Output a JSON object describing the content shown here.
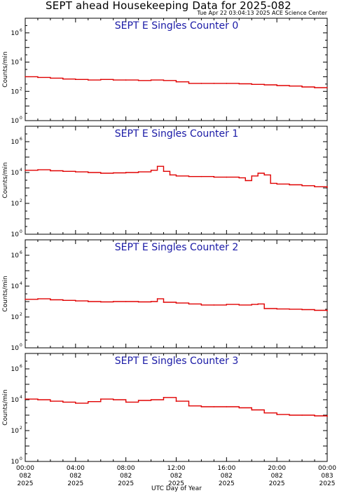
{
  "title": "SEPT ahead Housekeeping Data for 2025-082",
  "timestamp": "Tue Apr 22 03:04:13 2025 ACE Science Center",
  "xlabel": "UTC Day of Year",
  "colors": {
    "trace": "#e00000",
    "panel_title": "#1a1aa6",
    "axis": "#000000"
  },
  "x_ticks": [
    {
      "hour": 0,
      "time": "00:00",
      "doy": "082",
      "year": "2025"
    },
    {
      "hour": 4,
      "time": "04:00",
      "doy": "082",
      "year": "2025"
    },
    {
      "hour": 8,
      "time": "08:00",
      "doy": "082",
      "year": "2025"
    },
    {
      "hour": 12,
      "time": "12:00",
      "doy": "082",
      "year": "2025"
    },
    {
      "hour": 16,
      "time": "16:00",
      "doy": "082",
      "year": "2025"
    },
    {
      "hour": 20,
      "time": "20:00",
      "doy": "082",
      "year": "2025"
    },
    {
      "hour": 24,
      "time": "00:00",
      "doy": "083",
      "year": "2025"
    }
  ],
  "chart_data": [
    {
      "type": "line",
      "title": "SEPT E Singles Counter 0",
      "ylabel": "Counts/min",
      "yscale": "log",
      "ylim": [
        1,
        10000000.0
      ],
      "yticks": [
        {
          "exp": 0,
          "label": "10"
        },
        {
          "exp": 2,
          "label": "10"
        },
        {
          "exp": 4,
          "label": "10"
        },
        {
          "exp": 6,
          "label": "10"
        }
      ],
      "xlim": [
        0,
        24
      ],
      "x_hours": [
        0,
        1,
        2,
        3,
        4,
        5,
        6,
        7,
        8,
        9,
        10,
        11,
        12,
        13,
        14,
        15,
        16,
        17,
        18,
        19,
        20,
        21,
        22,
        23,
        24
      ],
      "values": [
        1000,
        900,
        800,
        700,
        650,
        600,
        650,
        600,
        600,
        550,
        600,
        550,
        450,
        350,
        350,
        350,
        350,
        330,
        300,
        280,
        250,
        230,
        200,
        180,
        180
      ]
    },
    {
      "type": "line",
      "title": "SEPT E Singles Counter 1",
      "ylabel": "Counts/min",
      "yscale": "log",
      "ylim": [
        1,
        10000000.0
      ],
      "yticks": [
        {
          "exp": 0,
          "label": "10"
        },
        {
          "exp": 2,
          "label": "10"
        },
        {
          "exp": 4,
          "label": "10"
        },
        {
          "exp": 6,
          "label": "10"
        }
      ],
      "xlim": [
        0,
        24
      ],
      "x_hours": [
        0,
        1,
        2,
        3,
        4,
        5,
        6,
        7,
        8,
        9,
        10,
        10.5,
        11,
        11.5,
        12,
        13,
        14,
        15,
        16,
        17,
        17.5,
        18,
        18.5,
        19,
        19.5,
        20,
        21,
        22,
        23,
        24
      ],
      "values": [
        14000,
        15000,
        13000,
        12000,
        11000,
        10000,
        9000,
        9500,
        10000,
        11000,
        14000,
        25000,
        12000,
        7000,
        6000,
        5500,
        5500,
        5000,
        5000,
        4500,
        3000,
        6000,
        9000,
        7000,
        2000,
        1800,
        1600,
        1400,
        1200,
        1100
      ]
    },
    {
      "type": "line",
      "title": "SEPT E Singles Counter 2",
      "ylabel": "Counts/min",
      "yscale": "log",
      "ylim": [
        1,
        10000000.0
      ],
      "yticks": [
        {
          "exp": 0,
          "label": "10"
        },
        {
          "exp": 2,
          "label": "10"
        },
        {
          "exp": 4,
          "label": "10"
        },
        {
          "exp": 6,
          "label": "10"
        }
      ],
      "xlim": [
        0,
        24
      ],
      "x_hours": [
        0,
        1,
        2,
        3,
        4,
        5,
        6,
        7,
        8,
        9,
        10,
        10.5,
        11,
        12,
        13,
        14,
        15,
        16,
        17,
        18,
        18.5,
        19,
        20,
        21,
        22,
        23,
        24
      ],
      "values": [
        1400,
        1500,
        1300,
        1200,
        1100,
        1000,
        950,
        1000,
        1000,
        950,
        1000,
        1500,
        900,
        800,
        700,
        600,
        600,
        650,
        600,
        650,
        700,
        350,
        330,
        320,
        300,
        270,
        250
      ]
    },
    {
      "type": "line",
      "title": "SEPT E Singles Counter 3",
      "ylabel": "Counts/min",
      "yscale": "log",
      "ylim": [
        1,
        10000000.0
      ],
      "yticks": [
        {
          "exp": 0,
          "label": "10"
        },
        {
          "exp": 2,
          "label": "10"
        },
        {
          "exp": 4,
          "label": "10"
        },
        {
          "exp": 6,
          "label": "10"
        }
      ],
      "xlim": [
        0,
        24
      ],
      "x_hours": [
        0,
        1,
        2,
        3,
        4,
        5,
        6,
        7,
        8,
        9,
        10,
        11,
        12,
        13,
        14,
        15,
        16,
        17,
        18,
        19,
        20,
        21,
        22,
        23,
        24
      ],
      "values": [
        11000,
        10000,
        8000,
        7000,
        6000,
        7500,
        11000,
        10000,
        7000,
        9000,
        10000,
        14000,
        8000,
        4000,
        3500,
        3500,
        3500,
        3000,
        2200,
        1400,
        1100,
        1000,
        1000,
        900,
        850
      ]
    }
  ]
}
